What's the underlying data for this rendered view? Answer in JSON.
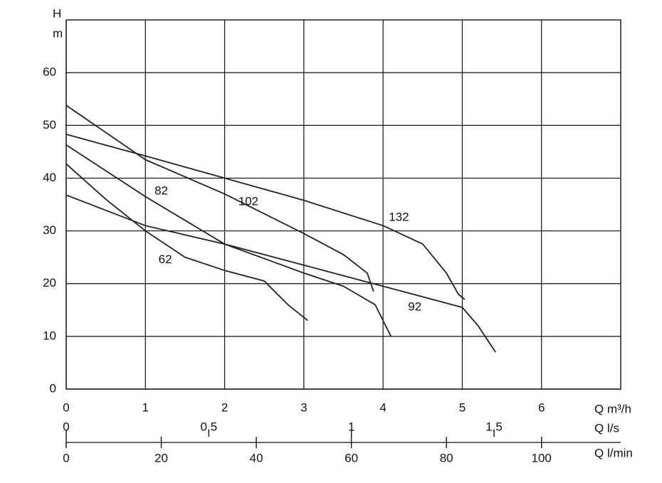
{
  "chart_data": {
    "type": "line",
    "y_label": "H",
    "y_unit": "m",
    "x_label": "Q m³/h",
    "xlim": [
      0,
      7
    ],
    "xticks": [
      0,
      1,
      2,
      3,
      4,
      5,
      6
    ],
    "ylim": [
      0,
      70
    ],
    "yticks": [
      0,
      10,
      20,
      30,
      40,
      50,
      60
    ],
    "grid": true,
    "secondary_x_axes": [
      {
        "label": "Q l/s",
        "xlim": [
          0,
          1.944
        ],
        "xticks": [
          0,
          {
            "value": 0.5,
            "label": "0,5"
          },
          1,
          {
            "value": 1.5,
            "label": "1,5"
          }
        ]
      },
      {
        "label": "Q l/min",
        "xlim": [
          0,
          116.67
        ],
        "xticks": [
          0,
          20,
          40,
          60,
          80,
          100
        ]
      }
    ],
    "series": [
      {
        "name": "62",
        "color": "#222222",
        "x": [
          0,
          0.5,
          1,
          1.5,
          2,
          2.5,
          2.8,
          3.05
        ],
        "values": [
          42.7,
          36,
          30,
          25,
          22.5,
          20.5,
          16,
          13
        ]
      },
      {
        "name": "82",
        "color": "#222222",
        "x": [
          0,
          1,
          2,
          3,
          3.5,
          3.9,
          4.1
        ],
        "values": [
          46.3,
          36.5,
          27.5,
          22,
          19.5,
          16,
          10
        ]
      },
      {
        "name": "92",
        "color": "#222222",
        "x": [
          0,
          1,
          2,
          3,
          4,
          4.5,
          5,
          5.2,
          5.42
        ],
        "values": [
          36.8,
          31,
          27.5,
          23.5,
          19.5,
          17.5,
          15.5,
          12,
          7
        ]
      },
      {
        "name": "102",
        "color": "#222222",
        "x": [
          0,
          1,
          2,
          3,
          3.5,
          3.8,
          3.88
        ],
        "values": [
          53.8,
          43.5,
          37,
          29.5,
          25.5,
          22,
          18.5
        ]
      },
      {
        "name": "132",
        "color": "#222222",
        "x": [
          0,
          1,
          2,
          3,
          4,
          4.5,
          4.8,
          4.95,
          5.03
        ],
        "values": [
          48.3,
          44.2,
          40,
          35.8,
          31,
          27.5,
          22,
          18,
          17
        ]
      }
    ]
  }
}
